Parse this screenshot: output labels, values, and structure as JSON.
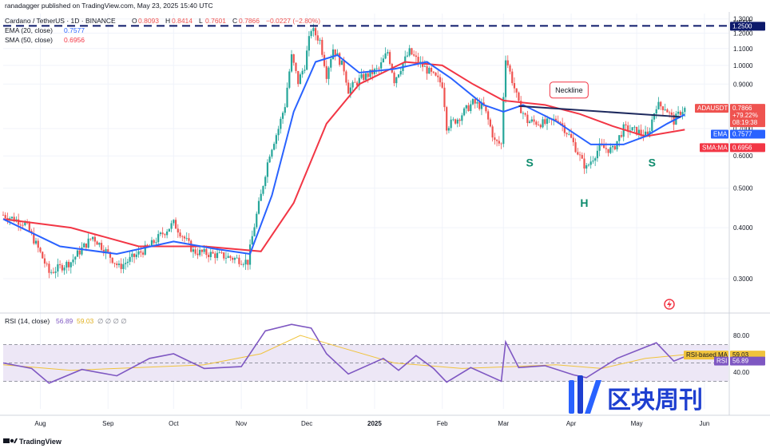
{
  "header": {
    "published_by": "ranadagger published on TradingView.com, May 23, 2025 15:40 UTC",
    "symbol_title": "Cardano / TetherUS · 1D · BINANCE",
    "ohlc": [
      {
        "k": "O",
        "v": "0.8093"
      },
      {
        "k": "H",
        "v": "0.8414"
      },
      {
        "k": "L",
        "v": "0.7601"
      },
      {
        "k": "C",
        "v": "0.7866"
      }
    ],
    "change": "−0.0227 (−2.80%)",
    "ema_legend_name": "EMA (20, close)",
    "ema_legend_value": "0.7577",
    "sma_legend_name": "SMA (50, close)",
    "sma_legend_value": "0.6956",
    "rsi_legend_name": "RSI (14, close)",
    "rsi_legend_value": "56.89",
    "rsi_legend_value2": "59.03",
    "rsi_legend_extra": "∅ ∅ ∅ ∅"
  },
  "currency": "USDT",
  "footer": {
    "brand": "TradingView"
  },
  "watermark": {
    "text": "区块周刊"
  },
  "colors": {
    "up": "#26a69a",
    "down": "#ef5350",
    "ema": "#2962ff",
    "sma": "#f23645",
    "neckline": "#1e2a5e",
    "resistance": "#0d1a6b",
    "rsi": "#7e57c2",
    "rsi_ma": "#f0c33c",
    "rsi_band": "#ede7f6",
    "grid": "#f0f3fa",
    "last_price_tag": "#ef5350"
  },
  "price_tags": {
    "last_symbol": "ADAUSDT",
    "last_price": "0.7866",
    "change_tag": "+79.22%",
    "countdown": "08:19:38",
    "ema_label": "EMA",
    "ema_value": "0.7577",
    "sma_label": "SMA:MA",
    "sma_value": "0.6956",
    "resistance_value": "1.2500",
    "rsi_ma_label": "RSI-based MA",
    "rsi_ma_value": "59.03",
    "rsi_label": "RSI",
    "rsi_value": "56.89"
  },
  "chart_data": {
    "type": "candlestick",
    "title": "Cardano / TetherUS · 1D · BINANCE",
    "y_scale": "log",
    "ylim": [
      0.255,
      1.34
    ],
    "y_ticks": [
      {
        "value": 1.3,
        "label": "1.3000"
      },
      {
        "value": 1.2,
        "label": "1.2000"
      },
      {
        "value": 1.1,
        "label": "1.1000"
      },
      {
        "value": 1.0,
        "label": "1.0000"
      },
      {
        "value": 0.9,
        "label": "0.9000"
      },
      {
        "value": 0.7,
        "label": "0.7000"
      },
      {
        "value": 0.6,
        "label": "0.6000"
      },
      {
        "value": 0.5,
        "label": "0.5000"
      },
      {
        "value": 0.4,
        "label": "0.4000"
      },
      {
        "value": 0.3,
        "label": "0.3000"
      }
    ],
    "x_ticks": [
      {
        "date": "2024-08-01",
        "label": "Aug"
      },
      {
        "date": "2024-09-01",
        "label": "Sep"
      },
      {
        "date": "2024-10-01",
        "label": "Oct"
      },
      {
        "date": "2024-11-01",
        "label": "Nov"
      },
      {
        "date": "2024-12-01",
        "label": "Dec"
      },
      {
        "date": "2025-01-01",
        "label": "2025"
      },
      {
        "date": "2025-02-01",
        "label": "Feb"
      },
      {
        "date": "2025-03-01",
        "label": "Mar"
      },
      {
        "date": "2025-04-01",
        "label": "Apr"
      },
      {
        "date": "2025-05-01",
        "label": "May"
      },
      {
        "date": "2025-06-01",
        "label": "Jun"
      }
    ],
    "x_range": [
      "2024-07-15",
      "2025-06-12"
    ],
    "close_path": [
      [
        "2024-07-15",
        0.43
      ],
      [
        "2024-07-25",
        0.41
      ],
      [
        "2024-08-05",
        0.31
      ],
      [
        "2024-08-15",
        0.33
      ],
      [
        "2024-08-25",
        0.38
      ],
      [
        "2024-09-06",
        0.32
      ],
      [
        "2024-09-20",
        0.36
      ],
      [
        "2024-10-01",
        0.41
      ],
      [
        "2024-10-10",
        0.35
      ],
      [
        "2024-10-25",
        0.34
      ],
      [
        "2024-11-04",
        0.33
      ],
      [
        "2024-11-10",
        0.48
      ],
      [
        "2024-11-14",
        0.61
      ],
      [
        "2024-11-18",
        0.7
      ],
      [
        "2024-11-21",
        0.8
      ],
      [
        "2024-11-24",
        1.05
      ],
      [
        "2024-11-27",
        0.91
      ],
      [
        "2024-11-30",
        1.0
      ],
      [
        "2024-12-03",
        1.23
      ],
      [
        "2024-12-07",
        1.15
      ],
      [
        "2024-12-10",
        0.95
      ],
      [
        "2024-12-13",
        1.1
      ],
      [
        "2024-12-18",
        0.98
      ],
      [
        "2024-12-20",
        0.87
      ],
      [
        "2024-12-26",
        0.93
      ],
      [
        "2025-01-03",
        0.98
      ],
      [
        "2025-01-07",
        1.08
      ],
      [
        "2025-01-10",
        0.92
      ],
      [
        "2025-01-17",
        1.08
      ],
      [
        "2025-01-21",
        1.02
      ],
      [
        "2025-01-28",
        0.94
      ],
      [
        "2025-02-01",
        0.9
      ],
      [
        "2025-02-03",
        0.71
      ],
      [
        "2025-02-08",
        0.74
      ],
      [
        "2025-02-15",
        0.81
      ],
      [
        "2025-02-20",
        0.79
      ],
      [
        "2025-02-25",
        0.65
      ],
      [
        "2025-02-28",
        0.64
      ],
      [
        "2025-03-02",
        1.05
      ],
      [
        "2025-03-04",
        0.96
      ],
      [
        "2025-03-08",
        0.8
      ],
      [
        "2025-03-12",
        0.73
      ],
      [
        "2025-03-20",
        0.72
      ],
      [
        "2025-03-26",
        0.74
      ],
      [
        "2025-04-01",
        0.66
      ],
      [
        "2025-04-06",
        0.58
      ],
      [
        "2025-04-08",
        0.56
      ],
      [
        "2025-04-14",
        0.63
      ],
      [
        "2025-04-20",
        0.62
      ],
      [
        "2025-04-25",
        0.7
      ],
      [
        "2025-05-01",
        0.69
      ],
      [
        "2025-05-06",
        0.67
      ],
      [
        "2025-05-10",
        0.8
      ],
      [
        "2025-05-14",
        0.79
      ],
      [
        "2025-05-18",
        0.73
      ],
      [
        "2025-05-21",
        0.77
      ],
      [
        "2025-05-23",
        0.7866
      ]
    ],
    "ema20_path": [
      [
        "2024-07-15",
        0.42
      ],
      [
        "2024-08-10",
        0.36
      ],
      [
        "2024-09-05",
        0.345
      ],
      [
        "2024-10-01",
        0.37
      ],
      [
        "2024-10-20",
        0.355
      ],
      [
        "2024-11-05",
        0.345
      ],
      [
        "2024-11-15",
        0.48
      ],
      [
        "2024-11-25",
        0.77
      ],
      [
        "2024-12-05",
        1.02
      ],
      [
        "2024-12-15",
        1.06
      ],
      [
        "2024-12-25",
        0.96
      ],
      [
        "2025-01-10",
        0.98
      ],
      [
        "2025-01-25",
        1.02
      ],
      [
        "2025-02-05",
        0.93
      ],
      [
        "2025-02-20",
        0.8
      ],
      [
        "2025-03-01",
        0.77
      ],
      [
        "2025-03-10",
        0.8
      ],
      [
        "2025-03-25",
        0.73
      ],
      [
        "2025-04-10",
        0.64
      ],
      [
        "2025-04-25",
        0.64
      ],
      [
        "2025-05-05",
        0.67
      ],
      [
        "2025-05-15",
        0.72
      ],
      [
        "2025-05-23",
        0.7577
      ]
    ],
    "sma50_path": [
      [
        "2024-07-15",
        0.42
      ],
      [
        "2024-08-15",
        0.4
      ],
      [
        "2024-09-15",
        0.36
      ],
      [
        "2024-10-15",
        0.36
      ],
      [
        "2024-11-10",
        0.35
      ],
      [
        "2024-11-25",
        0.46
      ],
      [
        "2024-12-10",
        0.72
      ],
      [
        "2024-12-25",
        0.9
      ],
      [
        "2025-01-15",
        1.02
      ],
      [
        "2025-02-01",
        1.0
      ],
      [
        "2025-02-15",
        0.9
      ],
      [
        "2025-03-01",
        0.82
      ],
      [
        "2025-03-20",
        0.8
      ],
      [
        "2025-04-05",
        0.76
      ],
      [
        "2025-04-20",
        0.71
      ],
      [
        "2025-05-05",
        0.67
      ],
      [
        "2025-05-23",
        0.6956
      ]
    ],
    "resistance_level": 1.25,
    "neckline": [
      [
        "2025-03-08",
        0.795
      ],
      [
        "2025-05-21",
        0.748
      ]
    ],
    "pattern_labels": [
      {
        "text": "S",
        "date": "2025-03-13",
        "price": 0.565
      },
      {
        "text": "H",
        "date": "2025-04-07",
        "price": 0.45
      },
      {
        "text": "S",
        "date": "2025-05-08",
        "price": 0.565
      }
    ],
    "callouts": [
      {
        "text": "Neckline",
        "date": "2025-03-31",
        "price": 0.87
      }
    ],
    "rsi": {
      "ylim": [
        0,
        100
      ],
      "upper_band": 70,
      "middle": 50,
      "lower_band": 30,
      "y_ticks": [
        {
          "value": 80,
          "label": "80.00"
        },
        {
          "value": 40,
          "label": "40.00"
        }
      ],
      "rsi_path": [
        [
          "2024-07-15",
          50
        ],
        [
          "2024-07-28",
          44
        ],
        [
          "2024-08-05",
          28
        ],
        [
          "2024-08-20",
          43
        ],
        [
          "2024-09-05",
          36
        ],
        [
          "2024-09-20",
          55
        ],
        [
          "2024-10-01",
          60
        ],
        [
          "2024-10-15",
          44
        ],
        [
          "2024-11-01",
          46
        ],
        [
          "2024-11-12",
          85
        ],
        [
          "2024-11-24",
          92
        ],
        [
          "2024-12-03",
          88
        ],
        [
          "2024-12-10",
          60
        ],
        [
          "2024-12-20",
          38
        ],
        [
          "2025-01-05",
          55
        ],
        [
          "2025-01-12",
          42
        ],
        [
          "2025-01-20",
          58
        ],
        [
          "2025-01-28",
          44
        ],
        [
          "2025-02-03",
          29
        ],
        [
          "2025-02-14",
          45
        ],
        [
          "2025-02-28",
          30
        ],
        [
          "2025-03-02",
          73
        ],
        [
          "2025-03-08",
          45
        ],
        [
          "2025-03-20",
          47
        ],
        [
          "2025-04-02",
          37
        ],
        [
          "2025-04-08",
          34
        ],
        [
          "2025-04-22",
          55
        ],
        [
          "2025-05-10",
          72
        ],
        [
          "2025-05-18",
          52
        ],
        [
          "2025-05-23",
          56.89
        ]
      ],
      "ma_path": [
        [
          "2024-07-15",
          48
        ],
        [
          "2024-08-15",
          42
        ],
        [
          "2024-09-15",
          45
        ],
        [
          "2024-10-15",
          48
        ],
        [
          "2024-11-10",
          60
        ],
        [
          "2024-11-28",
          80
        ],
        [
          "2024-12-15",
          68
        ],
        [
          "2025-01-10",
          50
        ],
        [
          "2025-02-10",
          44
        ],
        [
          "2025-03-05",
          46
        ],
        [
          "2025-03-25",
          48
        ],
        [
          "2025-04-15",
          44
        ],
        [
          "2025-05-05",
          55
        ],
        [
          "2025-05-23",
          59.03
        ]
      ]
    }
  }
}
